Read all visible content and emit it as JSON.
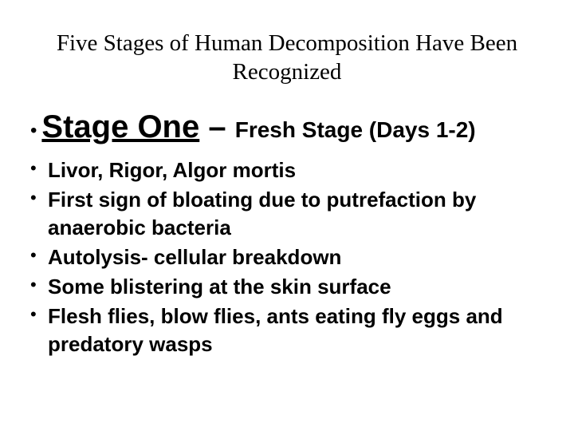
{
  "title": "Five Stages of Human Decomposition Have Been Recognized",
  "mainBullet": {
    "stageName": "Stage One",
    "dash": " – ",
    "stageDesc": "Fresh Stage (Days 1-2)"
  },
  "subBullets": [
    "Livor, Rigor, Algor mortis",
    " First sign of bloating due to putrefaction by anaerobic bacteria",
    "Autolysis- cellular breakdown",
    "Some blistering at the skin surface",
    "Flesh flies, blow flies, ants eating fly eggs and predatory wasps"
  ],
  "colors": {
    "background": "#ffffff",
    "text": "#000000"
  },
  "fonts": {
    "titleFamily": "Georgia, Times New Roman, serif",
    "bodyFamily": "Comic Sans MS, cursive, sans-serif",
    "titleSize": 29,
    "stageNameSize": 40,
    "stageDescSize": 28,
    "subBulletSize": 26
  }
}
